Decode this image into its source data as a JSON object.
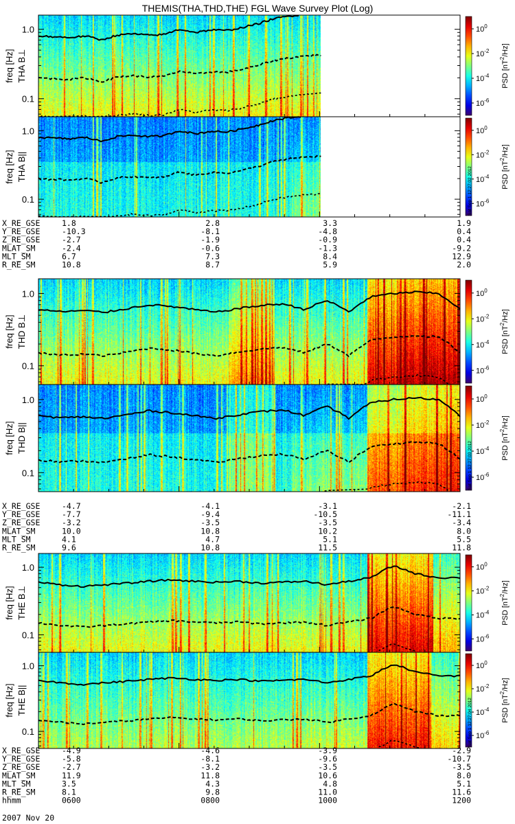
{
  "title": "THEMIS(THA,THD,THE) FGL Wave Survey Plot (Log)",
  "chart_data": {
    "type": "heatmap",
    "y_scale": "log",
    "y_range_hz": [
      0.055,
      1.6
    ],
    "y_ticks": [
      {
        "value": 1.0,
        "label": "1.0"
      },
      {
        "value": 0.1,
        "label": "0.1"
      }
    ],
    "colorbar": {
      "label_prefix": "PSD [nT",
      "label_suffix": "/Hz]",
      "ticks": [
        {
          "exp": 0,
          "label": "10"
        },
        {
          "exp": -2,
          "label": "10"
        },
        {
          "exp": -4,
          "label": "10"
        },
        {
          "exp": -6,
          "label": "10"
        }
      ],
      "tick_exponents": [
        "0",
        "-2",
        "-4",
        "-6"
      ],
      "range_exp": [
        -7,
        1
      ]
    },
    "panels": [
      {
        "probe": "THA",
        "component": "B⊥",
        "label": "THA B⊥",
        "ylabel": "freq [Hz]",
        "data_end_frac": 0.67,
        "stamp": "",
        "base": [
          0.8,
          0.78,
          0.76,
          0.8,
          0.7,
          0.82,
          0.86,
          0.82,
          0.84,
          1.0,
          0.9,
          0.98,
          0.96,
          1.06,
          1.2,
          1.42,
          1.55,
          1.65,
          1.7
        ]
      },
      {
        "probe": "THA",
        "component": "B||",
        "label": "THA B||",
        "ylabel": "freq [Hz]",
        "data_end_frac": 0.67,
        "stamp": "Sat Sep 1 12:27:02 2012",
        "base": [
          0.8,
          0.78,
          0.76,
          0.8,
          0.7,
          0.82,
          0.86,
          0.82,
          0.84,
          1.0,
          0.9,
          0.98,
          0.96,
          1.06,
          1.2,
          1.42,
          1.55,
          1.65,
          1.7
        ]
      },
      {
        "probe": "THD",
        "component": "B⊥",
        "label": "THD B⊥",
        "ylabel": "freq [Hz]",
        "data_end_frac": 1.0,
        "stamp": "",
        "base": [
          0.6,
          0.56,
          0.58,
          0.55,
          0.62,
          0.7,
          0.66,
          0.6,
          0.55,
          0.62,
          0.68,
          0.72,
          0.6,
          0.8,
          0.55,
          0.9,
          1.0,
          1.05,
          1.0,
          0.6
        ]
      },
      {
        "probe": "THD",
        "component": "B||",
        "label": "THD B||",
        "ylabel": "freq [Hz]",
        "data_end_frac": 1.0,
        "stamp": "Sat Sep 1 12:27:03 2012",
        "base": [
          0.6,
          0.56,
          0.58,
          0.55,
          0.62,
          0.7,
          0.66,
          0.6,
          0.55,
          0.62,
          0.68,
          0.72,
          0.6,
          0.8,
          0.55,
          0.9,
          1.0,
          1.05,
          1.0,
          0.6
        ]
      },
      {
        "probe": "THE",
        "component": "B⊥",
        "label": "THE B⊥",
        "ylabel": "freq [Hz]",
        "data_end_frac": 1.0,
        "stamp": "",
        "base": [
          0.6,
          0.55,
          0.52,
          0.55,
          0.58,
          0.62,
          0.65,
          0.62,
          0.6,
          0.62,
          0.58,
          0.6,
          0.62,
          0.55,
          0.62,
          0.7,
          1.05,
          0.8,
          0.7,
          0.7
        ]
      },
      {
        "probe": "THE",
        "component": "B||",
        "label": "THE B||",
        "ylabel": "freq [Hz]",
        "data_end_frac": 1.0,
        "stamp": "Sat Sep 1 12:27:04 2012",
        "base": [
          0.6,
          0.55,
          0.52,
          0.55,
          0.58,
          0.62,
          0.65,
          0.62,
          0.6,
          0.62,
          0.58,
          0.6,
          0.62,
          0.55,
          0.62,
          0.7,
          1.05,
          0.8,
          0.7,
          0.7
        ]
      }
    ],
    "ephemeris": [
      {
        "probe": "THA",
        "rows": [
          {
            "name": "X_RE_GSE",
            "values": [
              "1.8",
              "2.8",
              "3.3",
              "1.9"
            ]
          },
          {
            "name": "Y_RE_GSE",
            "values": [
              "-10.3",
              "-8.1",
              "-4.8",
              "0.4"
            ]
          },
          {
            "name": "Z_RE_GSE",
            "values": [
              "-2.7",
              "-1.9",
              "-0.9",
              "0.4"
            ]
          },
          {
            "name": "MLAT_SM",
            "values": [
              "-2.4",
              "-0.6",
              "-1.3",
              "-9.2"
            ]
          },
          {
            "name": "MLT_SM",
            "values": [
              "6.7",
              "7.3",
              "8.4",
              "12.9"
            ]
          },
          {
            "name": "R_RE_SM",
            "values": [
              "10.8",
              "8.7",
              "5.9",
              "2.0"
            ]
          }
        ]
      },
      {
        "probe": "THD",
        "rows": [
          {
            "name": "X_RE_GSE",
            "values": [
              "-4.7",
              "-4.1",
              "-3.1",
              "-2.1"
            ]
          },
          {
            "name": "Y_RE_GSE",
            "values": [
              "-7.7",
              "-9.4",
              "-10.5",
              "-11.1"
            ]
          },
          {
            "name": "Z_RE_GSE",
            "values": [
              "-3.2",
              "-3.5",
              "-3.5",
              "-3.4"
            ]
          },
          {
            "name": "MLAT_SM",
            "values": [
              "10.0",
              "10.8",
              "10.2",
              "8.0"
            ]
          },
          {
            "name": "MLT_SM",
            "values": [
              "4.1",
              "4.7",
              "5.1",
              "5.5"
            ]
          },
          {
            "name": "R_RE_SM",
            "values": [
              "9.6",
              "10.8",
              "11.5",
              "11.8"
            ]
          }
        ]
      },
      {
        "probe": "THE",
        "rows": [
          {
            "name": "X_RE_GSE",
            "values": [
              "-4.9",
              "-4.6",
              "-3.9",
              "-2.9"
            ]
          },
          {
            "name": "Y_RE_GSE",
            "values": [
              "-5.8",
              "-8.1",
              "-9.6",
              "-10.7"
            ]
          },
          {
            "name": "Z_RE_GSE",
            "values": [
              "-2.7",
              "-3.2",
              "-3.5",
              "-3.5"
            ]
          },
          {
            "name": "MLAT_SM",
            "values": [
              "11.9",
              "11.8",
              "10.6",
              "8.0"
            ]
          },
          {
            "name": "MLT_SM",
            "values": [
              "3.5",
              "4.3",
              "4.8",
              "5.1"
            ]
          },
          {
            "name": "R_RE_SM",
            "values": [
              "8.1",
              "9.8",
              "11.0",
              "11.6"
            ]
          },
          {
            "name": "hhmm",
            "values": [
              "0600",
              "0800",
              "1000",
              "1200"
            ]
          }
        ]
      }
    ],
    "date_label": "2007 Nov 20"
  }
}
